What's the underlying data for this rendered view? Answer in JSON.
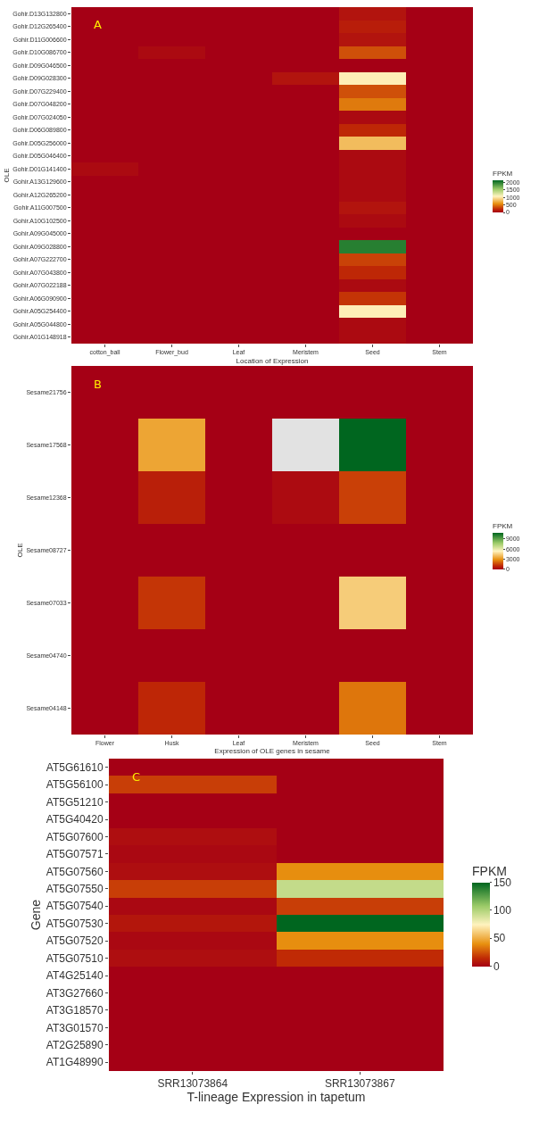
{
  "chart_data": [
    {
      "type": "heatmap",
      "xlabel": "Location of Expression",
      "ylabel": "OLE",
      "clabel": "FPKM",
      "annotations": [
        "A"
      ],
      "categories": [
        "cotton_ball",
        "Flower_bud",
        "Leaf",
        "Meristem",
        "Seed",
        "Stem"
      ],
      "y_categories": [
        "Gohir.D13G132800",
        "Gohir.D12G265400",
        "Gohir.D11G006600",
        "Gohir.D10G086700",
        "Gohir.D09G046500",
        "Gohir.D09G028300",
        "Gohir.D07G229400",
        "Gohir.D07G048200",
        "Gohir.D07G024050",
        "Gohir.D06G089800",
        "Gohir.D05G256000",
        "Gohir.D05G046400",
        "Gohir.D01G141400",
        "Gohir.A13G129600",
        "Gohir.A12G265200",
        "Gohir.A11G007500",
        "Gohir.A10G102500",
        "Gohir.A09G045000",
        "Gohir.A09G028800",
        "Gohir.A07G222700",
        "Gohir.A07G043800",
        "Gohir.A07G022188",
        "Gohir.A06G090900",
        "Gohir.A05G254400",
        "Gohir.A05G044800",
        "Gohir.A01G148918"
      ],
      "cells": [
        [
          0,
          0,
          0,
          0,
          100,
          0
        ],
        [
          0,
          0,
          0,
          0,
          150,
          0
        ],
        [
          0,
          0,
          0,
          0,
          100,
          0
        ],
        [
          0,
          50,
          0,
          0,
          350,
          0
        ],
        [
          0,
          0,
          0,
          0,
          0,
          0
        ],
        [
          0,
          0,
          0,
          100,
          1050,
          0
        ],
        [
          0,
          0,
          0,
          0,
          350,
          0
        ],
        [
          0,
          0,
          0,
          0,
          500,
          0
        ],
        [
          0,
          0,
          0,
          0,
          50,
          0
        ],
        [
          0,
          0,
          0,
          0,
          200,
          0
        ],
        [
          0,
          0,
          0,
          0,
          800,
          0
        ],
        [
          0,
          0,
          0,
          0,
          50,
          0
        ],
        [
          50,
          0,
          0,
          0,
          50,
          0
        ],
        [
          0,
          0,
          0,
          0,
          50,
          0
        ],
        [
          0,
          0,
          0,
          0,
          50,
          0
        ],
        [
          0,
          0,
          0,
          0,
          100,
          0
        ],
        [
          0,
          0,
          0,
          0,
          50,
          0
        ],
        [
          0,
          0,
          0,
          0,
          0,
          0
        ],
        [
          0,
          0,
          0,
          0,
          2000,
          0
        ],
        [
          0,
          0,
          0,
          0,
          300,
          0
        ],
        [
          0,
          0,
          0,
          0,
          200,
          0
        ],
        [
          0,
          0,
          0,
          0,
          50,
          0
        ],
        [
          0,
          0,
          0,
          0,
          250,
          0
        ],
        [
          0,
          0,
          0,
          0,
          1050,
          0
        ],
        [
          0,
          0,
          0,
          0,
          50,
          0
        ],
        [
          0,
          0,
          0,
          0,
          50,
          0
        ]
      ],
      "clim": [
        0,
        2150
      ],
      "cticks": [
        0,
        500,
        1000,
        1500,
        2000
      ]
    },
    {
      "type": "heatmap",
      "xlabel": "Expression of OLE genes in sesame",
      "ylabel": "OLE",
      "clabel": "FPKM",
      "annotations": [
        "B"
      ],
      "categories": [
        "Flower",
        "Husk",
        "Leaf",
        "Meristem",
        "Seed",
        "Stem"
      ],
      "y_categories": [
        "Sesame21756",
        "Sesame17568",
        "Sesame12368",
        "Sesame08727",
        "Sesame07033",
        "Sesame04740",
        "Sesame04148"
      ],
      "cells": [
        [
          0,
          0,
          0,
          0,
          0,
          0
        ],
        [
          0,
          3500,
          0,
          null,
          11000,
          0
        ],
        [
          0,
          800,
          0,
          300,
          1500,
          0
        ],
        [
          0,
          0,
          0,
          0,
          0,
          0
        ],
        [
          0,
          1300,
          0,
          0,
          4500,
          0
        ],
        [
          0,
          0,
          0,
          0,
          0,
          0
        ],
        [
          0,
          1000,
          0,
          0,
          2500,
          0
        ]
      ],
      "clim": [
        0,
        11000
      ],
      "cticks": [
        0,
        3000,
        6000,
        9000
      ]
    },
    {
      "type": "heatmap",
      "xlabel": "T-lineage Expression in tapetum",
      "ylabel": "Gene",
      "clabel": "FPKM",
      "annotations": [
        "C"
      ],
      "categories": [
        "SRR13073864",
        "SRR13073867"
      ],
      "y_categories": [
        "AT5G61610",
        "AT5G56100",
        "AT5G51210",
        "AT5G40420",
        "AT5G07600",
        "AT5G07571",
        "AT5G07560",
        "AT5G07550",
        "AT5G07540",
        "AT5G07530",
        "AT5G07520",
        "AT5G07510",
        "AT4G25140",
        "AT3G27660",
        "AT3G18570",
        "AT3G01570",
        "AT2G25890",
        "AT1G48990"
      ],
      "cells": [
        [
          0,
          0
        ],
        [
          20,
          0
        ],
        [
          0,
          0
        ],
        [
          0,
          0
        ],
        [
          5,
          0
        ],
        [
          3,
          0
        ],
        [
          5,
          40
        ],
        [
          20,
          95
        ],
        [
          3,
          20
        ],
        [
          8,
          150
        ],
        [
          3,
          40
        ],
        [
          5,
          15
        ],
        [
          0,
          0
        ],
        [
          0,
          0
        ],
        [
          0,
          0
        ],
        [
          0,
          0
        ],
        [
          0,
          0
        ],
        [
          0,
          0
        ]
      ],
      "clim": [
        0,
        150
      ],
      "cticks": [
        0,
        50,
        100,
        150
      ]
    }
  ]
}
